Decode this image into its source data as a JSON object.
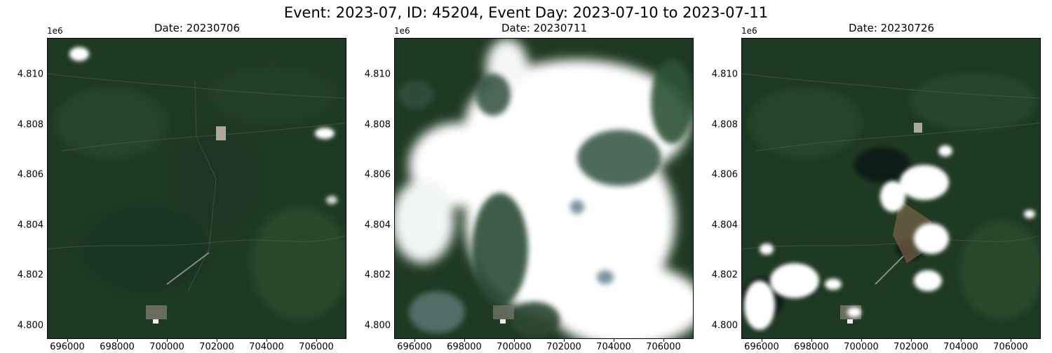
{
  "figure": {
    "suptitle": "Event: 2023-07, ID: 45204, Event Day: 2023-07-10 to 2023-07-11"
  },
  "axes_common": {
    "y_offset_text": "1e6",
    "y_ticks": [
      "4.810",
      "4.808",
      "4.806",
      "4.804",
      "4.802",
      "4.800"
    ],
    "x_ticks": [
      "696000",
      "698000",
      "700000",
      "702000",
      "704000",
      "706000"
    ]
  },
  "panels": [
    {
      "title": "Date: 20230706",
      "cloud_cover": "low"
    },
    {
      "title": "Date: 20230711",
      "cloud_cover": "very high"
    },
    {
      "title": "Date: 20230726",
      "cloud_cover": "moderate"
    }
  ],
  "colors": {
    "vegetation": "#1f3a22",
    "vegetation_light": "#2f5230",
    "cloud": "#ffffff",
    "cloud_shadow": "#0f1f14"
  }
}
